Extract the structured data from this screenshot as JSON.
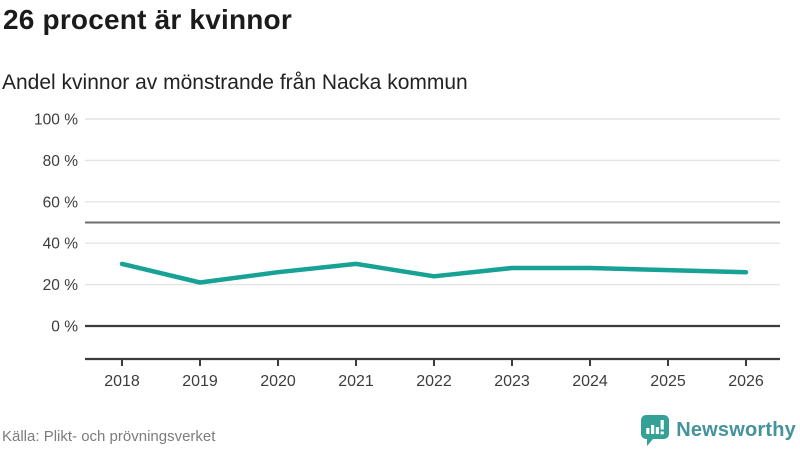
{
  "header": {
    "title": "26 procent är kvinnor",
    "subtitle": "Andel kvinnor av mönstrande från Nacka kommun"
  },
  "footer": {
    "source": "Källa: Plikt- och prövningsverket",
    "logo_text": "Newsworthy"
  },
  "colors": {
    "line": "#17a295",
    "grid": "#e4e4e4",
    "reference_line": "#6d6d6d",
    "zero_line": "#3c3c3c",
    "axis": "#3c3c3c",
    "tick_label": "#3d3d3d",
    "title": "#1b1b1b",
    "subtitle": "#222222",
    "source_text": "#7c7c7c",
    "logo_icon": "#35a096",
    "logo_text": "#45939b"
  },
  "chart_data": {
    "type": "line",
    "title": "26 procent är kvinnor",
    "subtitle": "Andel kvinnor av mönstrande från Nacka kommun",
    "x": [
      "2018",
      "2019",
      "2020",
      "2021",
      "2022",
      "2023",
      "2024",
      "2025",
      "2026"
    ],
    "series": [
      {
        "name": "Andel kvinnor av mönstrande",
        "values": [
          30,
          21,
          26,
          30,
          24,
          28,
          28,
          27,
          26
        ]
      }
    ],
    "unit": "%",
    "ylim": [
      0,
      100
    ],
    "yticks": [
      0,
      20,
      40,
      60,
      80,
      100
    ],
    "ytick_labels": [
      "0 %",
      "20 %",
      "40 %",
      "60 %",
      "80 %",
      "100 %"
    ],
    "reference_line": 50,
    "grid": true,
    "legend_position": "none",
    "source": "Källa: Plikt- och prövningsverket"
  }
}
